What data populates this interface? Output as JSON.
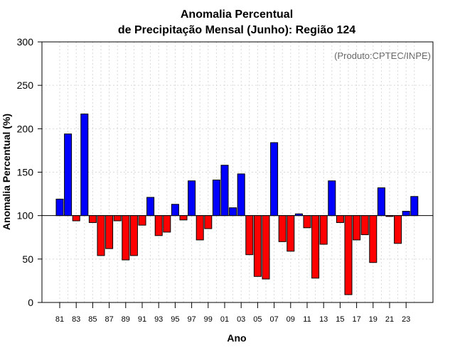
{
  "chart_data": {
    "type": "bar",
    "title_line1": "Anomalia Percentual",
    "title_line2": "de Precipitação Mensal (Junho): Região 124",
    "xlabel": "Ano",
    "ylabel": "Anomalia Percentual (%)",
    "credit": "(Produto:CPTEC/INPE)",
    "baseline": 100,
    "ylim": [
      0,
      300
    ],
    "yticks": [
      "0",
      "50",
      "100",
      "150",
      "200",
      "250",
      "300"
    ],
    "categories": [
      "81",
      "82",
      "83",
      "84",
      "85",
      "86",
      "87",
      "88",
      "89",
      "90",
      "91",
      "92",
      "93",
      "94",
      "95",
      "96",
      "97",
      "98",
      "99",
      "00",
      "01",
      "02",
      "03",
      "04",
      "05",
      "06",
      "07",
      "08",
      "09",
      "10",
      "11",
      "12",
      "13",
      "14",
      "15",
      "16",
      "17",
      "18",
      "19",
      "20",
      "21",
      "22",
      "23",
      "24"
    ],
    "xtick_labels": [
      "81",
      "83",
      "85",
      "87",
      "89",
      "91",
      "93",
      "95",
      "97",
      "99",
      "01",
      "03",
      "05",
      "07",
      "09",
      "11",
      "13",
      "15",
      "17",
      "19",
      "21",
      "23"
    ],
    "values": [
      119,
      194,
      94,
      217,
      92,
      54,
      62,
      94,
      49,
      54,
      89,
      121,
      77,
      81,
      113,
      95,
      140,
      72,
      85,
      141,
      158,
      109,
      148,
      55,
      30,
      27,
      184,
      70,
      59,
      102,
      86,
      28,
      67,
      140,
      92,
      9,
      72,
      78,
      46,
      132,
      99,
      68,
      105,
      122
    ],
    "colors": {
      "above": "#0000ff",
      "below": "#ff0000"
    }
  }
}
